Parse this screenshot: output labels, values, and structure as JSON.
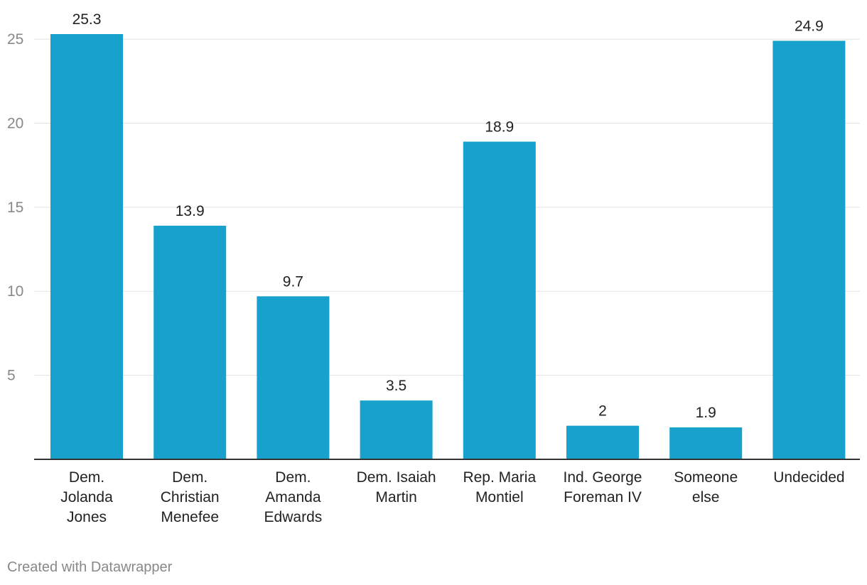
{
  "chart_data": {
    "type": "bar",
    "categories": [
      [
        "Dem.",
        "Jolanda",
        "Jones"
      ],
      [
        "Dem.",
        "Christian",
        "Menefee"
      ],
      [
        "Dem.",
        "Amanda",
        "Edwards"
      ],
      [
        "Dem. Isaiah",
        "Martin"
      ],
      [
        "Rep. Maria",
        "Montiel"
      ],
      [
        "Ind. George",
        "Foreman IV"
      ],
      [
        "Someone",
        "else"
      ],
      [
        "Undecided"
      ]
    ],
    "values": [
      25.3,
      13.9,
      9.7,
      3.5,
      18.9,
      2,
      1.9,
      24.9
    ],
    "value_labels": [
      "25.3",
      "13.9",
      "9.7",
      "3.5",
      "18.9",
      "2",
      "1.9",
      "24.9"
    ],
    "yticks": [
      5,
      10,
      15,
      20,
      25
    ],
    "ylim": [
      0,
      25.3
    ],
    "grid": true,
    "title": "",
    "xlabel": "",
    "ylabel": "",
    "colors": {
      "bar": "#18a1cd",
      "grid": "#e2e2e2",
      "axis": "#333333",
      "tick_label": "#888888",
      "value_label": "#222222",
      "category_label": "#222222"
    }
  },
  "footer": {
    "credit": "Created with Datawrapper"
  }
}
